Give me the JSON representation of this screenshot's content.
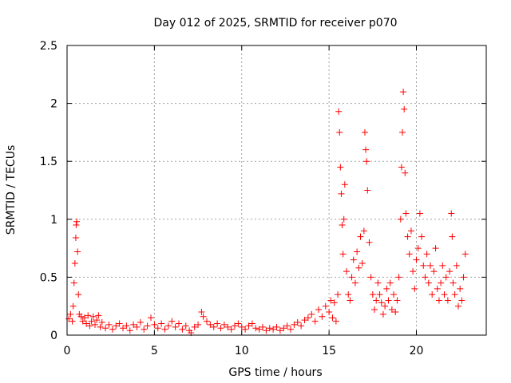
{
  "chart_data": {
    "type": "scatter",
    "title": "Day 012 of 2025, SRMTID for receiver p070",
    "xlabel": "GPS time / hours",
    "ylabel": "SRMTID / TECUs",
    "xlim": [
      0,
      24
    ],
    "ylim": [
      0,
      2.5
    ],
    "xticks": [
      0,
      5,
      10,
      15,
      20
    ],
    "xtick_labels": [
      "0",
      "5",
      "10",
      "15",
      "20"
    ],
    "yticks": [
      0,
      0.5,
      1,
      1.5,
      2,
      2.5
    ],
    "ytick_labels": [
      "0",
      "0.5",
      "1",
      "1.5",
      "2",
      "2.5"
    ],
    "grid": true,
    "marker": "+",
    "series": [
      {
        "name": "SRMTID",
        "color": "#ff0000",
        "points": [
          [
            0.1,
            0.14
          ],
          [
            0.2,
            0.18
          ],
          [
            0.3,
            0.12
          ],
          [
            0.35,
            0.25
          ],
          [
            0.4,
            0.45
          ],
          [
            0.45,
            0.62
          ],
          [
            0.5,
            0.84
          ],
          [
            0.52,
            0.95
          ],
          [
            0.55,
            0.98
          ],
          [
            0.6,
            0.72
          ],
          [
            0.65,
            0.35
          ],
          [
            0.7,
            0.18
          ],
          [
            0.8,
            0.16
          ],
          [
            0.9,
            0.12
          ],
          [
            1.0,
            0.15
          ],
          [
            1.1,
            0.1
          ],
          [
            1.2,
            0.17
          ],
          [
            1.3,
            0.08
          ],
          [
            1.4,
            0.12
          ],
          [
            1.5,
            0.16
          ],
          [
            1.6,
            0.09
          ],
          [
            1.7,
            0.13
          ],
          [
            1.8,
            0.17
          ],
          [
            1.9,
            0.07
          ],
          [
            2.0,
            0.11
          ],
          [
            2.2,
            0.06
          ],
          [
            2.4,
            0.09
          ],
          [
            2.6,
            0.05
          ],
          [
            2.8,
            0.08
          ],
          [
            3.0,
            0.1
          ],
          [
            3.2,
            0.06
          ],
          [
            3.4,
            0.08
          ],
          [
            3.6,
            0.04
          ],
          [
            3.8,
            0.09
          ],
          [
            4.0,
            0.07
          ],
          [
            4.2,
            0.11
          ],
          [
            4.4,
            0.05
          ],
          [
            4.6,
            0.08
          ],
          [
            4.8,
            0.15
          ],
          [
            5.0,
            0.09
          ],
          [
            5.2,
            0.06
          ],
          [
            5.4,
            0.1
          ],
          [
            5.6,
            0.05
          ],
          [
            5.8,
            0.08
          ],
          [
            6.0,
            0.12
          ],
          [
            6.2,
            0.07
          ],
          [
            6.4,
            0.1
          ],
          [
            6.6,
            0.05
          ],
          [
            6.8,
            0.08
          ],
          [
            7.0,
            0.04
          ],
          [
            7.1,
            0.02
          ],
          [
            7.3,
            0.07
          ],
          [
            7.5,
            0.09
          ],
          [
            7.7,
            0.2
          ],
          [
            7.8,
            0.16
          ],
          [
            8.0,
            0.12
          ],
          [
            8.2,
            0.09
          ],
          [
            8.4,
            0.07
          ],
          [
            8.6,
            0.1
          ],
          [
            8.8,
            0.06
          ],
          [
            9.0,
            0.09
          ],
          [
            9.2,
            0.07
          ],
          [
            9.4,
            0.05
          ],
          [
            9.6,
            0.08
          ],
          [
            9.8,
            0.1
          ],
          [
            10.0,
            0.07
          ],
          [
            10.2,
            0.05
          ],
          [
            10.4,
            0.08
          ],
          [
            10.6,
            0.1
          ],
          [
            10.8,
            0.06
          ],
          [
            11.0,
            0.05
          ],
          [
            11.2,
            0.07
          ],
          [
            11.4,
            0.04
          ],
          [
            11.6,
            0.06
          ],
          [
            11.8,
            0.05
          ],
          [
            12.0,
            0.07
          ],
          [
            12.2,
            0.04
          ],
          [
            12.4,
            0.06
          ],
          [
            12.6,
            0.08
          ],
          [
            12.8,
            0.05
          ],
          [
            13.0,
            0.09
          ],
          [
            13.2,
            0.11
          ],
          [
            13.4,
            0.08
          ],
          [
            13.6,
            0.13
          ],
          [
            13.8,
            0.15
          ],
          [
            14.0,
            0.18
          ],
          [
            14.2,
            0.12
          ],
          [
            14.4,
            0.22
          ],
          [
            14.6,
            0.16
          ],
          [
            14.8,
            0.25
          ],
          [
            15.0,
            0.2
          ],
          [
            15.1,
            0.3
          ],
          [
            15.2,
            0.15
          ],
          [
            15.3,
            0.28
          ],
          [
            15.4,
            0.12
          ],
          [
            15.5,
            0.35
          ],
          [
            15.55,
            1.93
          ],
          [
            15.6,
            1.75
          ],
          [
            15.65,
            1.45
          ],
          [
            15.7,
            1.22
          ],
          [
            15.75,
            0.95
          ],
          [
            15.8,
            0.7
          ],
          [
            15.85,
            1.0
          ],
          [
            15.9,
            1.3
          ],
          [
            16.0,
            0.55
          ],
          [
            16.1,
            0.35
          ],
          [
            16.2,
            0.3
          ],
          [
            16.3,
            0.5
          ],
          [
            16.4,
            0.65
          ],
          [
            16.5,
            0.45
          ],
          [
            16.6,
            0.72
          ],
          [
            16.7,
            0.58
          ],
          [
            16.8,
            0.85
          ],
          [
            16.9,
            0.62
          ],
          [
            17.0,
            0.9
          ],
          [
            17.05,
            1.75
          ],
          [
            17.1,
            1.6
          ],
          [
            17.15,
            1.5
          ],
          [
            17.2,
            1.25
          ],
          [
            17.3,
            0.8
          ],
          [
            17.4,
            0.5
          ],
          [
            17.5,
            0.35
          ],
          [
            17.6,
            0.22
          ],
          [
            17.7,
            0.3
          ],
          [
            17.8,
            0.45
          ],
          [
            17.9,
            0.35
          ],
          [
            18.0,
            0.28
          ],
          [
            18.1,
            0.18
          ],
          [
            18.2,
            0.25
          ],
          [
            18.3,
            0.4
          ],
          [
            18.4,
            0.3
          ],
          [
            18.5,
            0.45
          ],
          [
            18.6,
            0.22
          ],
          [
            18.7,
            0.35
          ],
          [
            18.8,
            0.2
          ],
          [
            18.9,
            0.3
          ],
          [
            19.0,
            0.5
          ],
          [
            19.1,
            1.0
          ],
          [
            19.15,
            1.45
          ],
          [
            19.2,
            1.75
          ],
          [
            19.25,
            2.1
          ],
          [
            19.3,
            1.95
          ],
          [
            19.35,
            1.4
          ],
          [
            19.4,
            1.05
          ],
          [
            19.5,
            0.85
          ],
          [
            19.6,
            0.7
          ],
          [
            19.7,
            0.9
          ],
          [
            19.8,
            0.55
          ],
          [
            19.9,
            0.4
          ],
          [
            20.0,
            0.65
          ],
          [
            20.1,
            0.75
          ],
          [
            20.2,
            1.05
          ],
          [
            20.3,
            0.85
          ],
          [
            20.4,
            0.6
          ],
          [
            20.5,
            0.5
          ],
          [
            20.6,
            0.7
          ],
          [
            20.7,
            0.45
          ],
          [
            20.8,
            0.6
          ],
          [
            20.9,
            0.35
          ],
          [
            21.0,
            0.55
          ],
          [
            21.1,
            0.75
          ],
          [
            21.2,
            0.4
          ],
          [
            21.3,
            0.3
          ],
          [
            21.4,
            0.45
          ],
          [
            21.5,
            0.6
          ],
          [
            21.6,
            0.35
          ],
          [
            21.7,
            0.5
          ],
          [
            21.8,
            0.3
          ],
          [
            21.9,
            0.55
          ],
          [
            22.0,
            1.05
          ],
          [
            22.05,
            0.85
          ],
          [
            22.1,
            0.45
          ],
          [
            22.2,
            0.35
          ],
          [
            22.3,
            0.6
          ],
          [
            22.4,
            0.25
          ],
          [
            22.5,
            0.4
          ],
          [
            22.6,
            0.3
          ],
          [
            22.7,
            0.5
          ],
          [
            22.8,
            0.7
          ]
        ]
      }
    ]
  }
}
